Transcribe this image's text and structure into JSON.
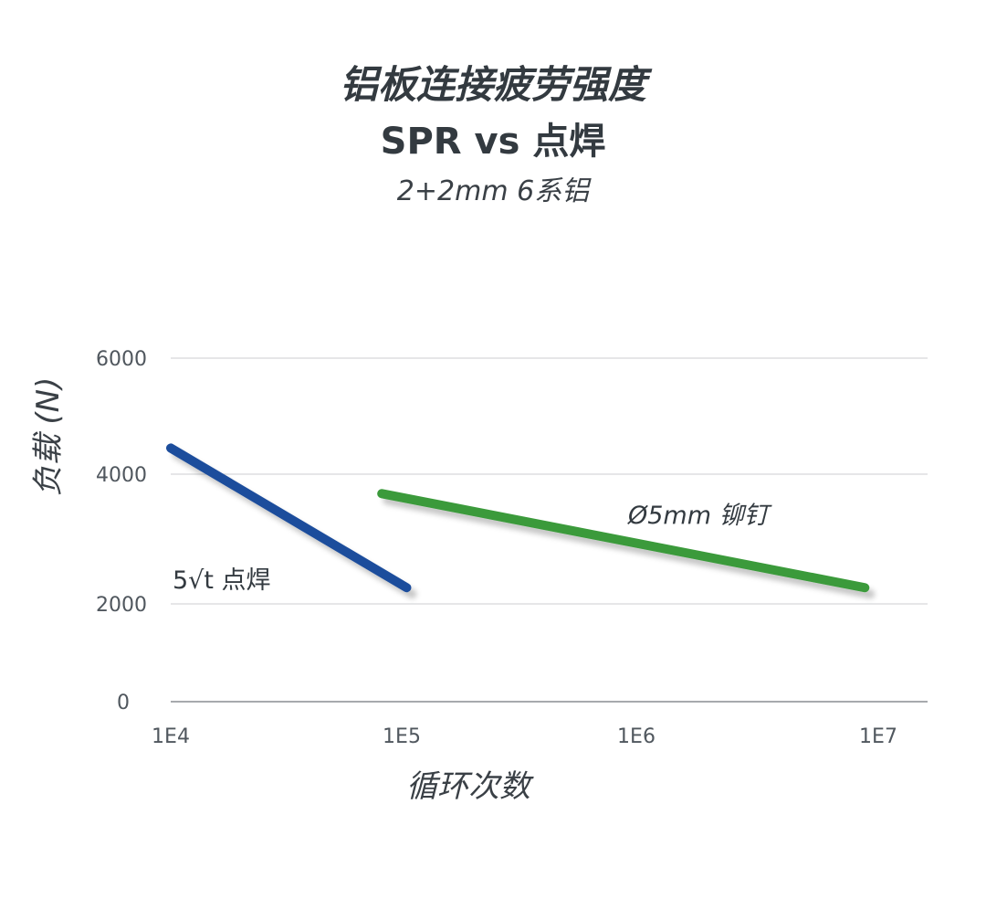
{
  "chart_data": {
    "type": "line",
    "title": "铝板连接疲劳强度",
    "title_line2": "SPR vs 点焊",
    "subtitle": "2+2mm 6系铝",
    "xlabel": "循环次数",
    "ylabel": "负载 (N)",
    "x_scale": "log",
    "x_ticks": [
      10000,
      100000,
      1000000,
      10000000
    ],
    "x_tick_labels": [
      "1E4",
      "1E5",
      "1E6",
      "1E7"
    ],
    "y_ticks": [
      0,
      2000,
      4000,
      6000
    ],
    "y_tick_labels": [
      "0",
      "2000",
      "4000",
      "6000"
    ],
    "ylim": [
      0,
      6000
    ],
    "grid": "horizontal",
    "series": [
      {
        "name": "5√t 点焊",
        "color": "#1f4e9c",
        "points": [
          {
            "x": 10000,
            "y": 4450
          },
          {
            "x": 105000,
            "y": 2250
          }
        ]
      },
      {
        "name": "Ø5mm 铆钉",
        "color": "#3a9a3a",
        "points": [
          {
            "x": 82000,
            "y": 3700
          },
          {
            "x": 8800000,
            "y": 2250
          }
        ]
      }
    ]
  }
}
